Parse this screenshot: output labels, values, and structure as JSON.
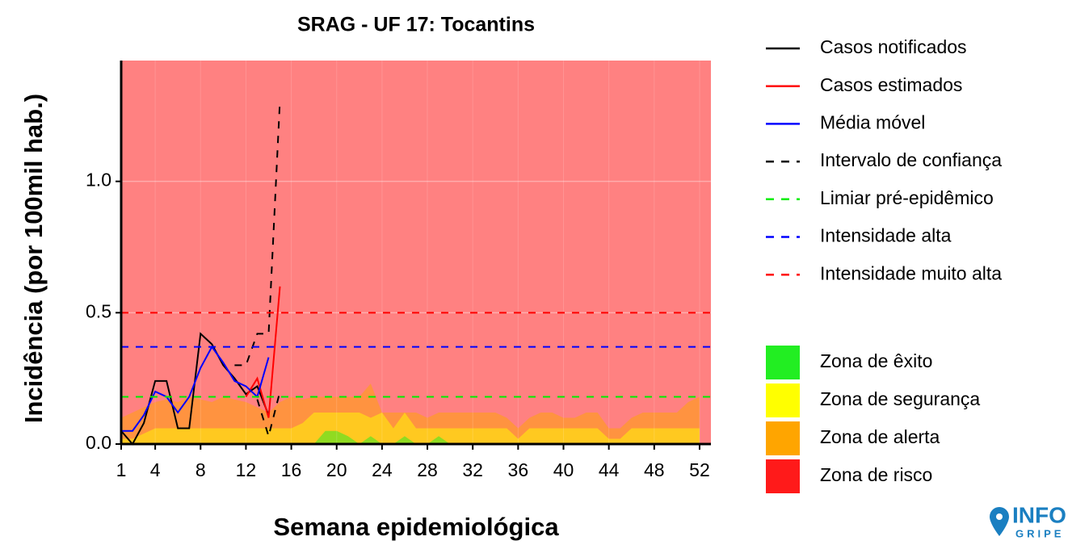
{
  "chart_data": {
    "type": "line",
    "title": "SRAG - UF 17: Tocantins",
    "ylabel": "Incidência (por 100mil hab.)",
    "xlabel": "Semana epidemiológica",
    "x": [
      1,
      2,
      3,
      4,
      5,
      6,
      7,
      8,
      9,
      10,
      11,
      12,
      13,
      14,
      15,
      16,
      17,
      18,
      19,
      20,
      21,
      22,
      23,
      24,
      25,
      26,
      27,
      28,
      29,
      30,
      31,
      32,
      33,
      34,
      35,
      36,
      37,
      38,
      39,
      40,
      41,
      42,
      43,
      44,
      45,
      46,
      47,
      48,
      49,
      50,
      51,
      52
    ],
    "xlim": [
      1,
      53
    ],
    "xticks": [
      1,
      4,
      8,
      12,
      16,
      20,
      24,
      28,
      32,
      36,
      40,
      44,
      48,
      52
    ],
    "ylim": [
      0,
      1.46
    ],
    "yticks": [
      {
        "value": 0,
        "label": "0.0"
      },
      0.5,
      {
        "value": 1,
        "label": "1.0"
      }
    ],
    "grid": true,
    "series": [
      {
        "name": "Casos notificados",
        "color": "#000000",
        "linestyle": "solid",
        "values": [
          0.05,
          0.0,
          0.08,
          0.24,
          0.24,
          0.06,
          0.06,
          0.42,
          0.38,
          0.3,
          0.25,
          0.19,
          0.22,
          0.11,
          null,
          null,
          null,
          null,
          null,
          null,
          null,
          null,
          null,
          null,
          null,
          null,
          null,
          null,
          null,
          null,
          null,
          null,
          null,
          null,
          null,
          null,
          null,
          null,
          null,
          null,
          null,
          null,
          null,
          null,
          null,
          null,
          null,
          null,
          null,
          null,
          null,
          null
        ]
      },
      {
        "name": "Casos estimados",
        "color": "#ff0000",
        "linestyle": "solid",
        "values": [
          null,
          null,
          null,
          null,
          null,
          null,
          null,
          null,
          null,
          null,
          null,
          0.18,
          0.25,
          0.1,
          0.6,
          null,
          null,
          null,
          null,
          null,
          null,
          null,
          null,
          null,
          null,
          null,
          null,
          null,
          null,
          null,
          null,
          null,
          null,
          null,
          null,
          null,
          null,
          null,
          null,
          null,
          null,
          null,
          null,
          null,
          null,
          null,
          null,
          null,
          null,
          null,
          null,
          null
        ]
      },
      {
        "name": "Média móvel",
        "color": "#0000ff",
        "linestyle": "solid",
        "values": [
          0.05,
          0.05,
          0.11,
          0.2,
          0.18,
          0.12,
          0.18,
          0.29,
          0.37,
          0.31,
          0.24,
          0.22,
          0.18,
          0.33,
          null,
          null,
          null,
          null,
          null,
          null,
          null,
          null,
          null,
          null,
          null,
          null,
          null,
          null,
          null,
          null,
          null,
          null,
          null,
          null,
          null,
          null,
          null,
          null,
          null,
          null,
          null,
          null,
          null,
          null,
          null,
          null,
          null,
          null,
          null,
          null,
          null,
          null
        ]
      },
      {
        "name": "Intervalo de confiança",
        "color": "#000000",
        "linestyle": "dashed",
        "upper": [
          null,
          null,
          null,
          null,
          null,
          null,
          null,
          null,
          null,
          null,
          0.3,
          0.3,
          0.42,
          0.42,
          1.31,
          null,
          null,
          null,
          null,
          null,
          null,
          null,
          null,
          null,
          null,
          null,
          null,
          null,
          null,
          null,
          null,
          null,
          null,
          null,
          null,
          null,
          null,
          null,
          null,
          null,
          null,
          null,
          null,
          null,
          null,
          null,
          null,
          null,
          null,
          null,
          null,
          null
        ],
        "lower": [
          null,
          null,
          null,
          null,
          null,
          null,
          null,
          null,
          null,
          null,
          null,
          null,
          0.17,
          0.03,
          0.2,
          null,
          null,
          null,
          null,
          null,
          null,
          null,
          null,
          null,
          null,
          null,
          null,
          null,
          null,
          null,
          null,
          null,
          null,
          null,
          null,
          null,
          null,
          null,
          null,
          null,
          null,
          null,
          null,
          null,
          null,
          null,
          null,
          null,
          null,
          null,
          null,
          null
        ]
      },
      {
        "name": "Limiar pré-epidêmico",
        "color": "#00ee00",
        "linestyle": "dashed",
        "value": 0.18
      },
      {
        "name": "Intensidade alta",
        "color": "#0000ff",
        "linestyle": "dashed",
        "value": 0.37
      },
      {
        "name": "Intensidade muito alta",
        "color": "#ff0000",
        "linestyle": "dashed",
        "value": 0.5
      }
    ],
    "zones": [
      {
        "name": "Zona de êxito",
        "color": "#22ee22",
        "values": [
          0,
          0,
          0,
          0,
          0,
          0,
          0,
          0,
          0,
          0,
          0,
          0,
          0,
          0,
          0,
          0,
          0,
          0,
          0.05,
          0.05,
          0.03,
          0,
          0.03,
          0,
          0,
          0.03,
          0,
          0,
          0.03,
          0,
          0,
          0,
          0,
          0,
          0,
          0,
          0,
          0,
          0,
          0,
          0,
          0,
          0,
          0,
          0,
          0,
          0,
          0,
          0,
          0,
          0,
          0
        ]
      },
      {
        "name": "Zona de segurança",
        "color": "#ffff00",
        "values": [
          0.02,
          0.02,
          0.04,
          0.06,
          0.06,
          0.06,
          0.06,
          0.06,
          0.06,
          0.06,
          0.06,
          0.06,
          0.06,
          0.06,
          0.06,
          0.06,
          0.08,
          0.12,
          0.12,
          0.12,
          0.12,
          0.12,
          0.1,
          0.12,
          0.06,
          0.12,
          0.06,
          0.06,
          0.06,
          0.06,
          0.06,
          0.06,
          0.06,
          0.06,
          0.06,
          0.02,
          0.06,
          0.06,
          0.06,
          0.06,
          0.06,
          0.06,
          0.06,
          0.02,
          0.02,
          0.06,
          0.06,
          0.06,
          0.06,
          0.06,
          0.06,
          0.06
        ]
      },
      {
        "name": "Zona de alerta",
        "color": "#ffa500",
        "values": [
          0.1,
          0.12,
          0.14,
          0.16,
          0.17,
          0.16,
          0.18,
          0.17,
          0.16,
          0.18,
          0.17,
          0.16,
          0.14,
          0.12,
          0.16,
          0.18,
          0.17,
          0.18,
          0.18,
          0.18,
          0.18,
          0.18,
          0.23,
          0.12,
          0.12,
          0.12,
          0.12,
          0.1,
          0.12,
          0.12,
          0.12,
          0.12,
          0.12,
          0.12,
          0.1,
          0.06,
          0.1,
          0.12,
          0.12,
          0.1,
          0.1,
          0.12,
          0.12,
          0.06,
          0.06,
          0.1,
          0.12,
          0.12,
          0.12,
          0.12,
          0.16,
          0.18
        ]
      },
      {
        "name": "Zona de risco",
        "color": "#ff1a1a"
      }
    ]
  },
  "logo": {
    "title": "INFO",
    "subtitle": "GRIPE"
  }
}
